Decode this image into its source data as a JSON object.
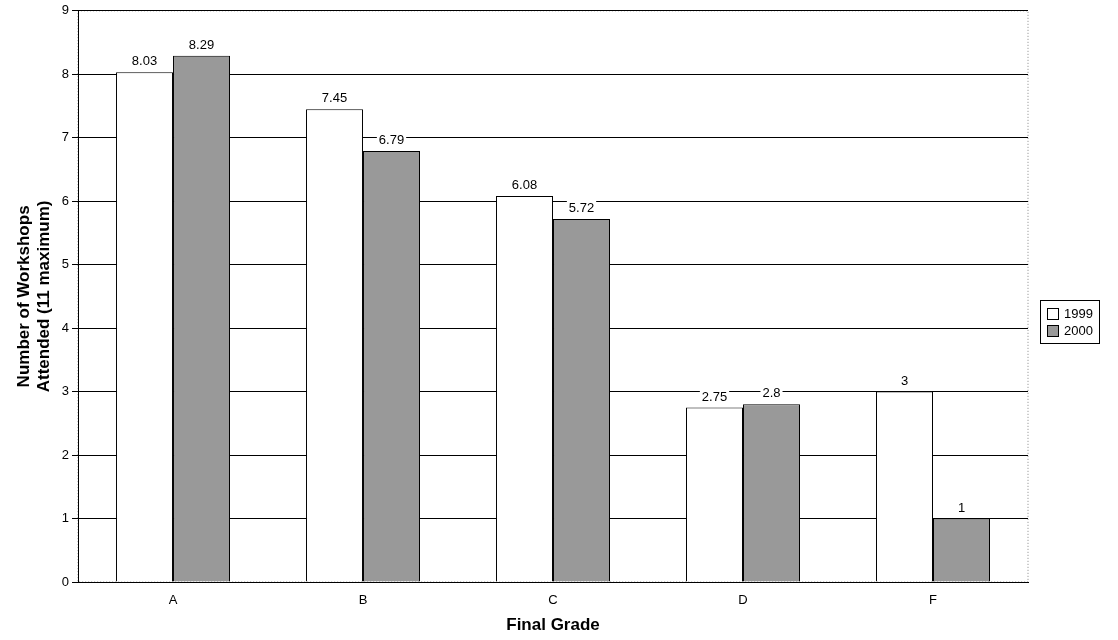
{
  "chart_data": {
    "type": "bar",
    "xlabel": "Final Grade",
    "ylabel": "Number of Workshops Attended (11 maximum)",
    "categories": [
      "A",
      "B",
      "C",
      "D",
      "F"
    ],
    "series": [
      {
        "name": "1999",
        "color": "#ffffff",
        "values": [
          8.03,
          7.45,
          6.08,
          2.75,
          3
        ]
      },
      {
        "name": "2000",
        "color": "#999999",
        "values": [
          8.29,
          6.79,
          5.72,
          2.8,
          1
        ]
      }
    ],
    "ylim": [
      0,
      9
    ],
    "yticks": [
      0,
      1,
      2,
      3,
      4,
      5,
      6,
      7,
      8,
      9
    ],
    "grid": "y",
    "legend": "right",
    "data_labels": true
  }
}
